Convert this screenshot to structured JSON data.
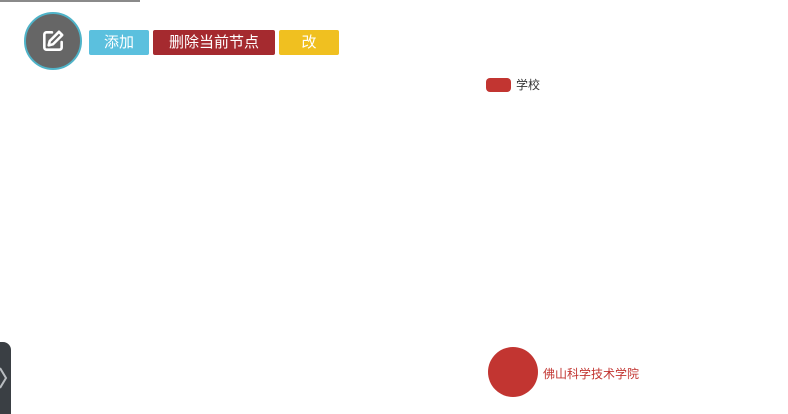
{
  "toolbar": {
    "add_label": "添加",
    "delete_label": "删除当前节点",
    "edit_label": "改"
  },
  "edit_fab": {
    "icon": "edit-square-icon"
  },
  "legend": {
    "items": [
      {
        "label": "学校",
        "color": "#c23531"
      }
    ]
  },
  "graph": {
    "nodes": [
      {
        "name": "佛山科学技术学院",
        "category": "学校",
        "color": "#c23531"
      }
    ]
  },
  "side_panel": {
    "icon": "chevron-right-icon"
  }
}
